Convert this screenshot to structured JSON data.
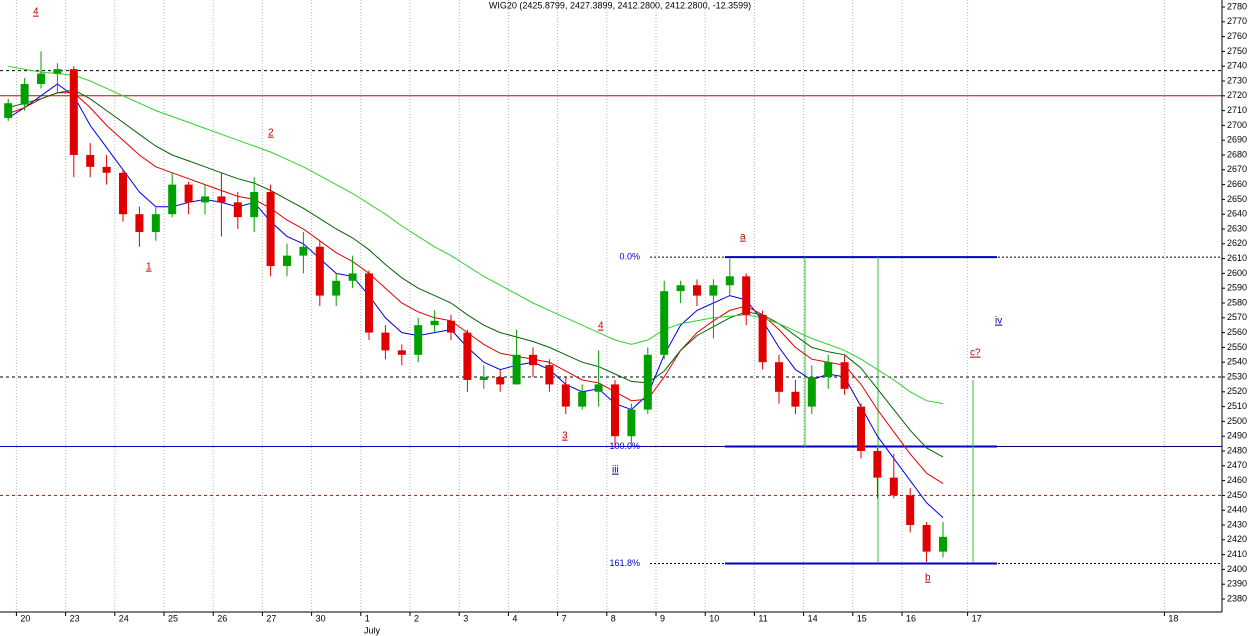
{
  "chart_data": {
    "type": "candlestick",
    "title": "WIG20 (2425.8799, 2427.3899, 2412.2800, 2412.2800, -12.3599)",
    "month_label": "July",
    "categories": [
      null,
      "20",
      null,
      null,
      "23",
      null,
      null,
      "24",
      null,
      null,
      "25",
      null,
      null,
      "26",
      null,
      null,
      "27",
      null,
      null,
      "30",
      null,
      null,
      "1",
      null,
      null,
      "2",
      null,
      null,
      "3",
      null,
      null,
      "4",
      null,
      null,
      "7",
      null,
      null,
      "8",
      null,
      null,
      "9",
      null,
      null,
      "10",
      null,
      null,
      "11",
      null,
      null,
      "14",
      null,
      null,
      "15",
      null,
      null,
      "16",
      null,
      null,
      null,
      "17",
      null,
      null,
      null,
      null,
      null,
      null,
      null,
      null,
      null,
      null,
      null,
      "18",
      null,
      null
    ],
    "open": [
      2705,
      2714,
      2728,
      2735,
      2738,
      2680,
      2672,
      2668,
      2640,
      2628,
      2640,
      2660,
      2648,
      2652,
      2648,
      2638,
      2655,
      2605,
      2612,
      2618,
      2585,
      2595,
      2600,
      2560,
      2548,
      2545,
      2565,
      2568,
      2560,
      2528,
      2530,
      2525,
      2545,
      2538,
      2525,
      2510,
      2520,
      2525,
      2490,
      2508,
      2545,
      2588,
      2592,
      2585,
      2592,
      2598,
      2572,
      2540,
      2520,
      2510,
      2530,
      2540,
      2510,
      2480,
      2462,
      2450,
      2430,
      2412,
      null,
      null,
      null,
      null,
      null,
      null,
      null,
      null,
      null,
      null,
      null,
      null,
      null,
      null,
      null,
      null
    ],
    "high": [
      2718,
      2732,
      2750,
      2742,
      2740,
      2688,
      2680,
      2670,
      2645,
      2645,
      2668,
      2662,
      2660,
      2668,
      2655,
      2665,
      2660,
      2620,
      2628,
      2622,
      2600,
      2612,
      2602,
      2565,
      2552,
      2570,
      2575,
      2572,
      2562,
      2538,
      2535,
      2562,
      2550,
      2542,
      2530,
      2525,
      2548,
      2528,
      2512,
      2550,
      2595,
      2595,
      2596,
      2596,
      2610,
      2600,
      2575,
      2545,
      2528,
      2538,
      2545,
      2545,
      2512,
      2482,
      2478,
      2455,
      2432,
      2432,
      null,
      null,
      null,
      null,
      null,
      null,
      null,
      null,
      null,
      null,
      null,
      null,
      null,
      null,
      null,
      null
    ],
    "low": [
      2703,
      2710,
      2725,
      2722,
      2665,
      2665,
      2660,
      2635,
      2618,
      2622,
      2638,
      2640,
      2640,
      2625,
      2630,
      2628,
      2598,
      2598,
      2600,
      2578,
      2578,
      2590,
      2555,
      2542,
      2538,
      2540,
      2560,
      2555,
      2520,
      2522,
      2520,
      2525,
      2530,
      2520,
      2505,
      2508,
      2510,
      2482,
      2485,
      2505,
      2542,
      2580,
      2578,
      2556,
      2585,
      2565,
      2535,
      2512,
      2505,
      2505,
      2522,
      2518,
      2475,
      2448,
      2448,
      2425,
      2405,
      2408,
      null,
      null,
      null,
      null,
      null,
      null,
      null,
      null,
      null,
      null,
      null,
      null,
      null,
      null,
      null,
      null
    ],
    "close": [
      2715,
      2728,
      2735,
      2738,
      2680,
      2672,
      2668,
      2640,
      2628,
      2640,
      2660,
      2648,
      2652,
      2648,
      2638,
      2655,
      2605,
      2612,
      2618,
      2585,
      2595,
      2600,
      2560,
      2548,
      2545,
      2565,
      2568,
      2560,
      2528,
      2530,
      2525,
      2545,
      2538,
      2525,
      2510,
      2520,
      2525,
      2490,
      2508,
      2545,
      2588,
      2592,
      2585,
      2592,
      2598,
      2572,
      2540,
      2520,
      2510,
      2530,
      2540,
      2522,
      2480,
      2462,
      2450,
      2430,
      2412,
      2422,
      null,
      null,
      null,
      null,
      null,
      null,
      null,
      null,
      null,
      null,
      null,
      null,
      null,
      null,
      null,
      null
    ],
    "up_color": "#00a000",
    "down_color": "#e00000",
    "series": [
      {
        "color": "#0000e0",
        "values": [
          2705,
          2712,
          2720,
          2728,
          2720,
          2700,
          2685,
          2670,
          2655,
          2645,
          2645,
          2648,
          2650,
          2648,
          2645,
          2648,
          2635,
          2625,
          2620,
          2610,
          2600,
          2598,
          2585,
          2570,
          2560,
          2558,
          2560,
          2562,
          2550,
          2540,
          2535,
          2538,
          2540,
          2535,
          2525,
          2520,
          2522,
          2512,
          2508,
          2518,
          2545,
          2565,
          2575,
          2580,
          2585,
          2582,
          2568,
          2550,
          2535,
          2528,
          2532,
          2530,
          2510,
          2490,
          2475,
          2460,
          2445,
          2435,
          null,
          null,
          null,
          null,
          null,
          null,
          null,
          null,
          null,
          null,
          null,
          null,
          null,
          null,
          null,
          null
        ]
      },
      {
        "color": "#e00000",
        "values": [
          2708,
          2712,
          2718,
          2722,
          2722,
          2712,
          2700,
          2690,
          2680,
          2672,
          2668,
          2664,
          2660,
          2656,
          2652,
          2650,
          2644,
          2636,
          2630,
          2622,
          2614,
          2608,
          2600,
          2590,
          2580,
          2574,
          2570,
          2568,
          2560,
          2552,
          2546,
          2544,
          2542,
          2540,
          2534,
          2528,
          2526,
          2520,
          2514,
          2515,
          2530,
          2548,
          2560,
          2568,
          2575,
          2578,
          2572,
          2562,
          2550,
          2542,
          2540,
          2538,
          2525,
          2508,
          2493,
          2478,
          2465,
          2458,
          null,
          null,
          null,
          null,
          null,
          null,
          null,
          null,
          null,
          null,
          null,
          null,
          null,
          null,
          null,
          null
        ]
      },
      {
        "color": "#006400",
        "values": [
          2712,
          2715,
          2718,
          2722,
          2724,
          2718,
          2710,
          2702,
          2694,
          2686,
          2680,
          2676,
          2672,
          2668,
          2664,
          2661,
          2656,
          2650,
          2644,
          2637,
          2630,
          2624,
          2616,
          2606,
          2597,
          2590,
          2585,
          2580,
          2572,
          2565,
          2560,
          2557,
          2554,
          2550,
          2545,
          2540,
          2537,
          2532,
          2527,
          2526,
          2534,
          2548,
          2558,
          2564,
          2570,
          2574,
          2572,
          2566,
          2558,
          2550,
          2547,
          2545,
          2536,
          2522,
          2508,
          2494,
          2482,
          2476,
          null,
          null,
          null,
          null,
          null,
          null,
          null,
          null,
          null,
          null,
          null,
          null,
          null,
          null,
          null,
          null
        ]
      },
      {
        "color": "#30d030",
        "values": [
          2740,
          2738,
          2736,
          2735,
          2734,
          2730,
          2725,
          2720,
          2715,
          2710,
          2706,
          2702,
          2698,
          2694,
          2690,
          2686,
          2682,
          2677,
          2672,
          2666,
          2660,
          2654,
          2647,
          2640,
          2632,
          2625,
          2618,
          2612,
          2605,
          2598,
          2592,
          2586,
          2580,
          2575,
          2570,
          2565,
          2560,
          2555,
          2552,
          2555,
          2562,
          2566,
          2568,
          2570,
          2571,
          2572,
          2570,
          2566,
          2561,
          2556,
          2552,
          2548,
          2542,
          2535,
          2528,
          2520,
          2514,
          2512,
          null,
          null,
          null,
          null,
          null,
          null,
          null,
          null,
          null,
          null,
          null,
          null,
          null,
          null,
          null,
          null
        ]
      }
    ],
    "levels": [
      {
        "value": 2737,
        "color": "#000000",
        "style": "dashed"
      },
      {
        "value": 2720,
        "color": "#d00000",
        "style": "solid"
      },
      {
        "value": 2530,
        "color": "#000000",
        "style": "dashed"
      },
      {
        "value": 2483,
        "color": "#0000c0",
        "style": "solid"
      },
      {
        "value": 2450,
        "color": "#d00000",
        "style": "dashed"
      }
    ],
    "fib": [
      {
        "label": "0.0%",
        "price": 2611,
        "color": "#0000c0"
      },
      {
        "label": "100.0%",
        "price": 2483,
        "color": "#0000c0"
      },
      {
        "label": "161.8%",
        "price": 2404,
        "color": "#0000c0"
      }
    ],
    "annotations": [
      {
        "text": "4",
        "color": "#c00000"
      },
      {
        "text": "2",
        "color": "#c00000"
      },
      {
        "text": "1",
        "color": "#c00000"
      },
      {
        "text": "4",
        "color": "#c00000"
      },
      {
        "text": "3",
        "color": "#c00000"
      },
      {
        "text": "iii",
        "color": "#0000a0"
      },
      {
        "text": "a",
        "color": "#c00000"
      },
      {
        "text": "b",
        "color": "#c00000"
      },
      {
        "text": "c?",
        "color": "#c00000"
      },
      {
        "text": "iv",
        "color": "#0000a0"
      }
    ],
    "ylim": [
      2380,
      2780
    ],
    "yticks": [
      2380,
      2390,
      2400,
      2410,
      2420,
      2430,
      2440,
      2450,
      2460,
      2470,
      2480,
      2490,
      2500,
      2510,
      2520,
      2530,
      2540,
      2550,
      2560,
      2570,
      2580,
      2590,
      2600,
      2610,
      2620,
      2630,
      2640,
      2650,
      2660,
      2670,
      2680,
      2690,
      2700,
      2710,
      2720,
      2730,
      2740,
      2750,
      2760,
      2770,
      2780
    ]
  }
}
